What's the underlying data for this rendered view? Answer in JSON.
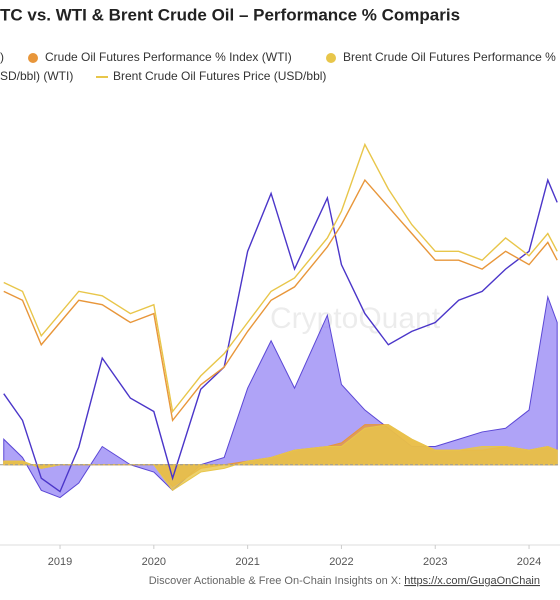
{
  "chart_data": {
    "type": "line",
    "title": "TC vs. WTI & Brent Crude Oil – Performance % Comparis",
    "watermark": "CryptoQuant",
    "footer": {
      "text": "Discover Actionable & Free On-Chain Insights on X: ",
      "link": "https://x.com/GugaOnChain"
    },
    "x": [
      2018.4,
      2018.6,
      2018.8,
      2019.0,
      2019.2,
      2019.45,
      2019.75,
      2020.0,
      2020.2,
      2020.5,
      2020.75,
      2021.0,
      2021.25,
      2021.5,
      2021.85,
      2022.0,
      2022.25,
      2022.5,
      2022.75,
      2023.0,
      2023.25,
      2023.5,
      2023.75,
      2024.0,
      2024.2,
      2024.3
    ],
    "xlim": [
      2018.36,
      2024.33
    ],
    "xticks": [
      2019,
      2020,
      2021,
      2022,
      2023,
      2024
    ],
    "ylim": [
      0,
      100
    ],
    "y2lim": [
      -22,
      100
    ],
    "series": [
      {
        "name": ")",
        "kind": "area",
        "axis": "y2",
        "color": "#5b47d6",
        "fill": "#9b8cf5",
        "values": [
          7,
          2,
          -7,
          -9,
          -5,
          5,
          0,
          -2,
          -7,
          0,
          2,
          21,
          34,
          21,
          41,
          22,
          15,
          10,
          5,
          5,
          7,
          9,
          10,
          15,
          46,
          39
        ]
      },
      {
        "name": "Crude Oil Futures Performance % Index (WTI)",
        "kind": "area",
        "axis": "y2",
        "color": "#e8963a",
        "fill": "#e8963a",
        "values": [
          1,
          1,
          -1,
          0,
          0,
          0,
          0,
          0,
          -6,
          -1,
          0,
          1,
          2,
          4,
          5,
          6,
          11,
          11,
          7,
          4,
          4,
          4,
          5,
          4,
          5,
          4
        ]
      },
      {
        "name": "Brent Crude Oil Futures Performance %",
        "kind": "area",
        "axis": "y2",
        "color": "#e8c64a",
        "fill": "#e8c64a",
        "values": [
          1,
          1,
          -1,
          0,
          0,
          0,
          0,
          0,
          -7,
          -2,
          -1,
          1,
          2,
          4,
          5,
          5,
          10,
          11,
          7,
          4,
          4,
          5,
          5,
          4,
          5,
          4
        ]
      },
      {
        "kind": "line",
        "color": "#4b36c9",
        "values": [
          34,
          28,
          15,
          12,
          22,
          42,
          33,
          30,
          15,
          35,
          40,
          66,
          79,
          62,
          78,
          63,
          52,
          45,
          48,
          50,
          55,
          57,
          62,
          66,
          82,
          77
        ]
      },
      {
        "name": "SD/bbl) (WTI)",
        "kind": "line",
        "color": "#e8963a",
        "values": [
          57,
          55,
          45,
          50,
          55,
          54,
          50,
          52,
          28,
          36,
          40,
          48,
          55,
          58,
          67,
          72,
          82,
          76,
          70,
          64,
          64,
          62,
          66,
          63,
          68,
          64
        ]
      },
      {
        "name": "Brent Crude Oil Futures Price (USD/bbl)",
        "kind": "line",
        "color": "#e8c64a",
        "values": [
          59,
          57,
          47,
          52,
          57,
          56,
          52,
          54,
          30,
          38,
          43,
          50,
          57,
          60,
          69,
          75,
          90,
          80,
          72,
          66,
          66,
          64,
          69,
          65,
          70,
          66
        ]
      }
    ]
  }
}
